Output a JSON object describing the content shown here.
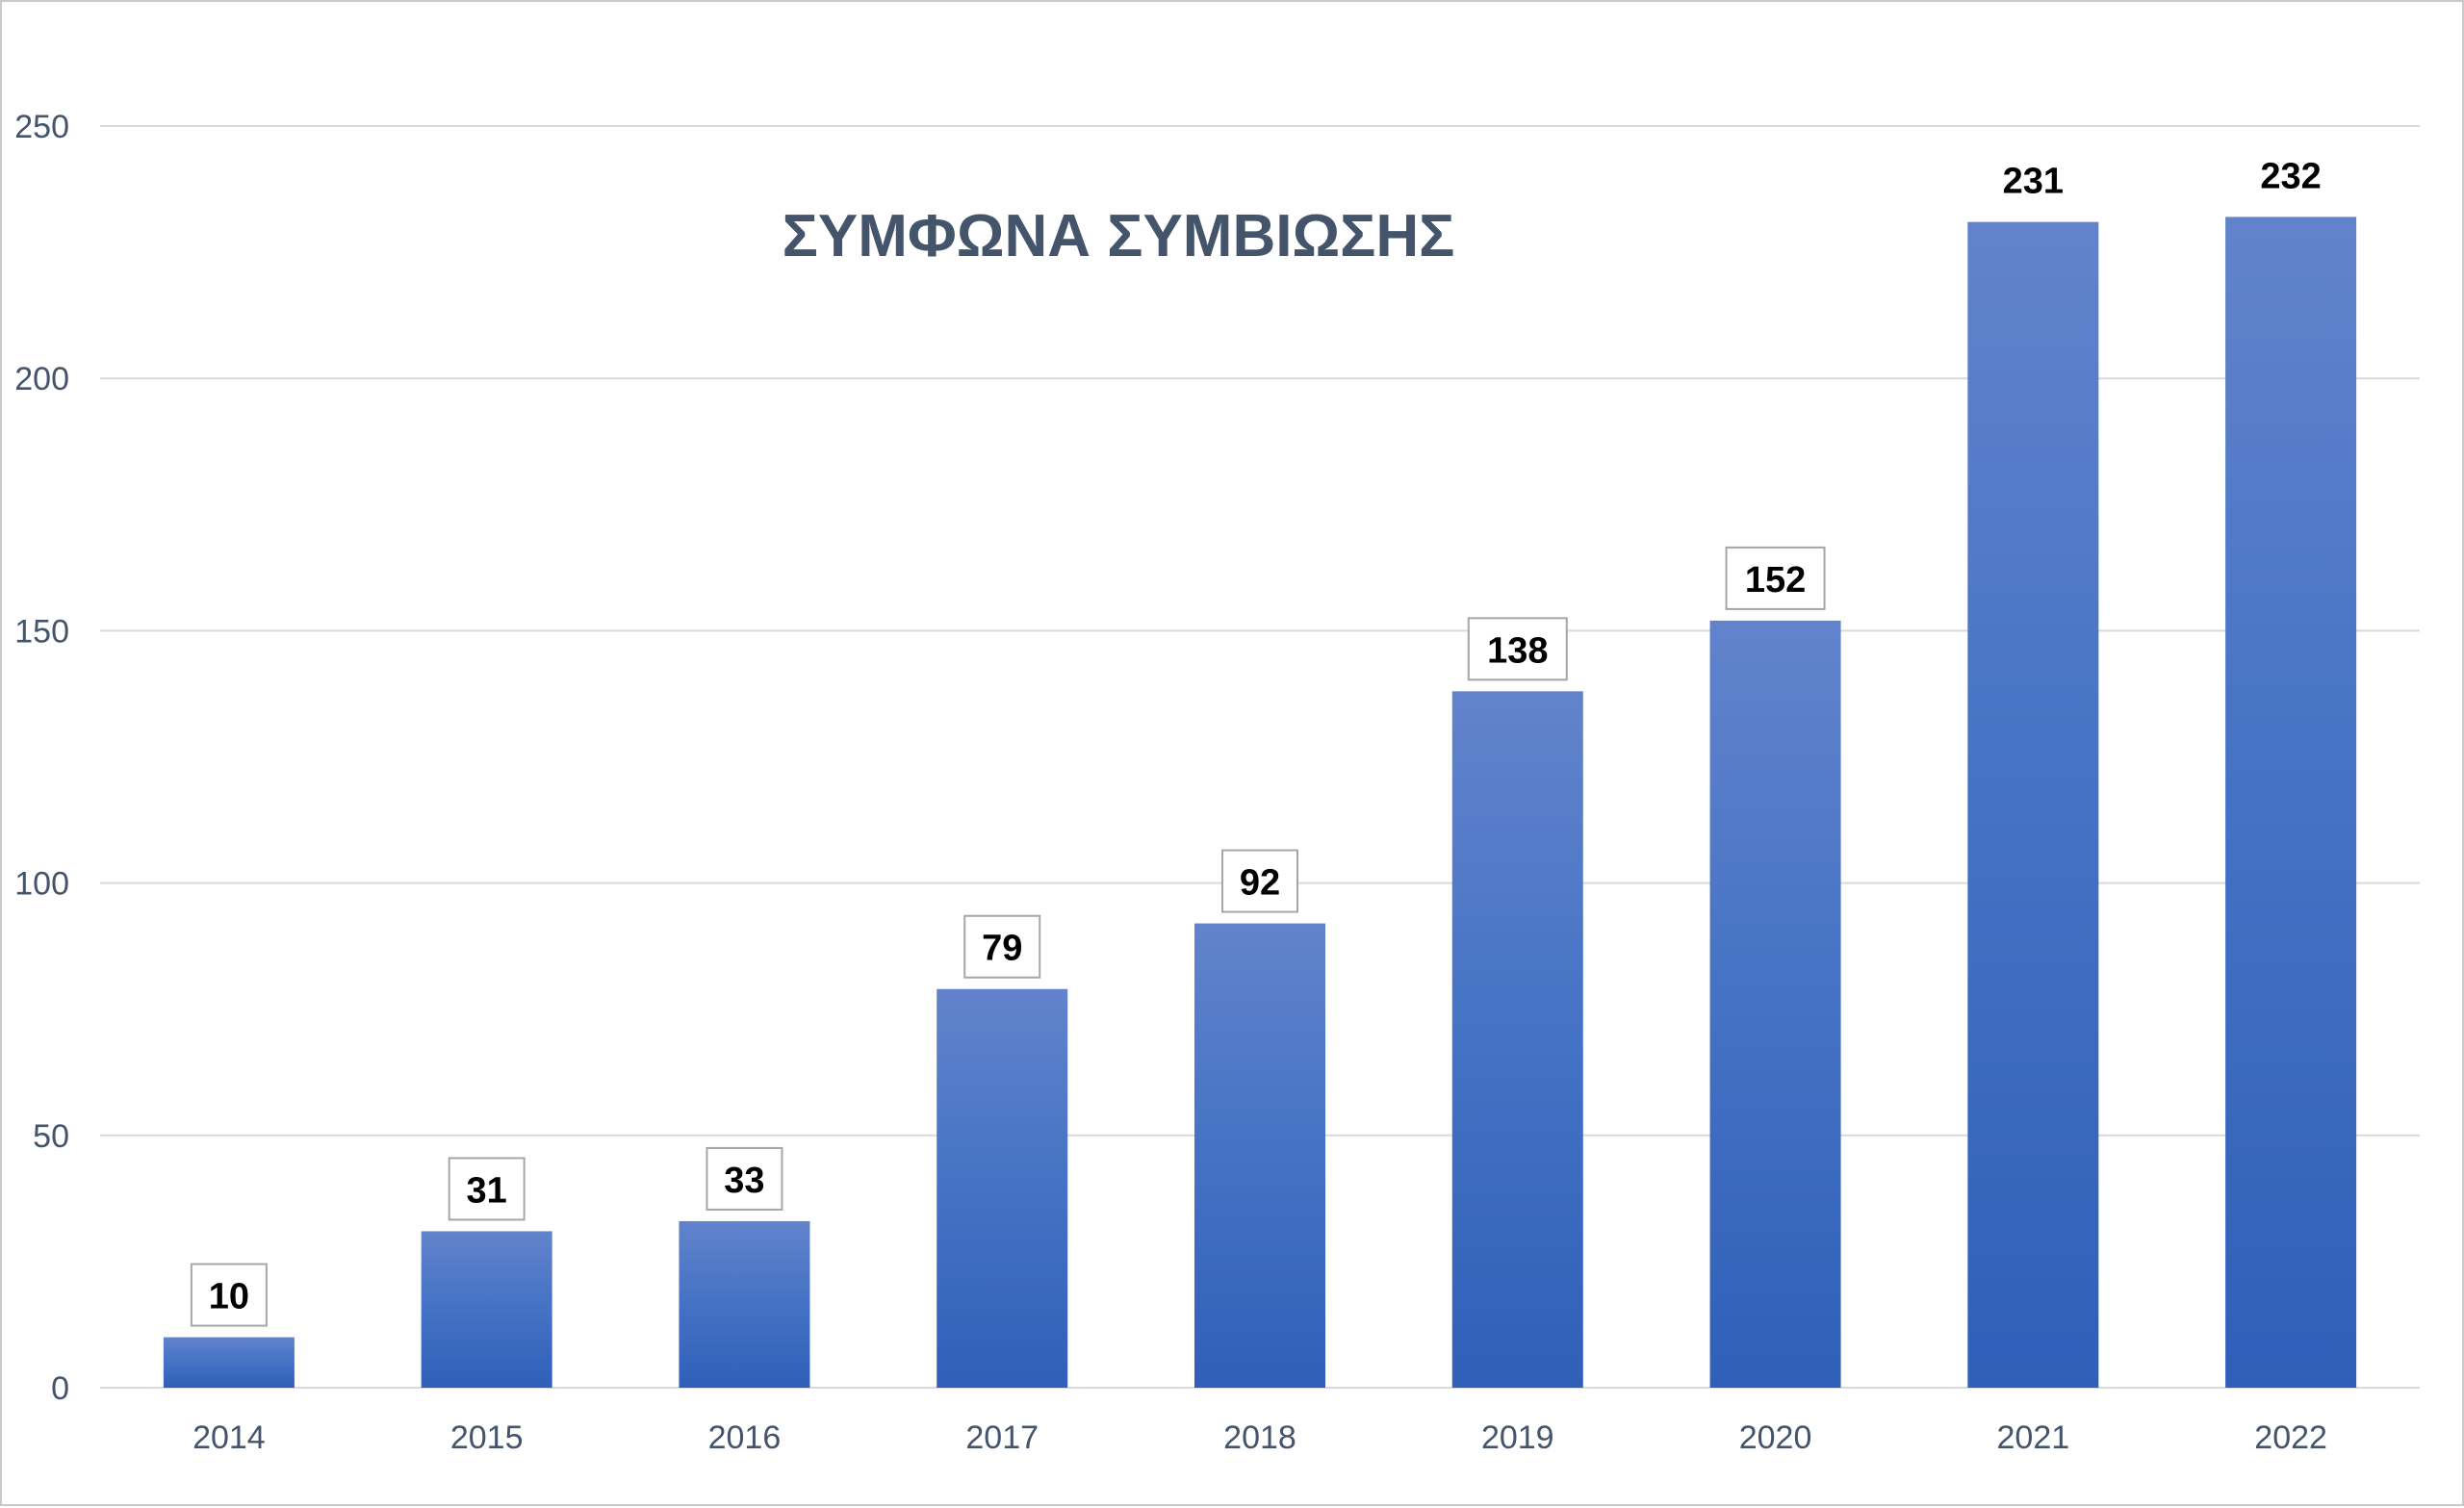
{
  "chart_data": {
    "type": "bar",
    "title": "ΣΥΜΦΩΝΑ ΣΥΜΒΙΩΣΗΣ",
    "xlabel": "",
    "ylabel": "",
    "categories": [
      "2014",
      "2015",
      "2016",
      "2017",
      "2018",
      "2019",
      "2020",
      "2021",
      "2022"
    ],
    "values": [
      10,
      31,
      33,
      79,
      92,
      138,
      152,
      231,
      232
    ],
    "ylim": [
      0,
      250
    ],
    "yticks": [
      0,
      50,
      100,
      150,
      200,
      250
    ],
    "grid": true,
    "legend": "none",
    "data_labels_boxed": [
      true,
      true,
      true,
      true,
      true,
      true,
      true,
      false,
      false
    ],
    "colors": {
      "bar_top": "#6283cc",
      "bar_mid": "#4472c4",
      "bar_bottom": "#2f5fb8",
      "grid": "#d9d9d9",
      "axis_text": "#44546a",
      "title": "#44546a",
      "label_box_border": "#a6a6a6"
    }
  }
}
